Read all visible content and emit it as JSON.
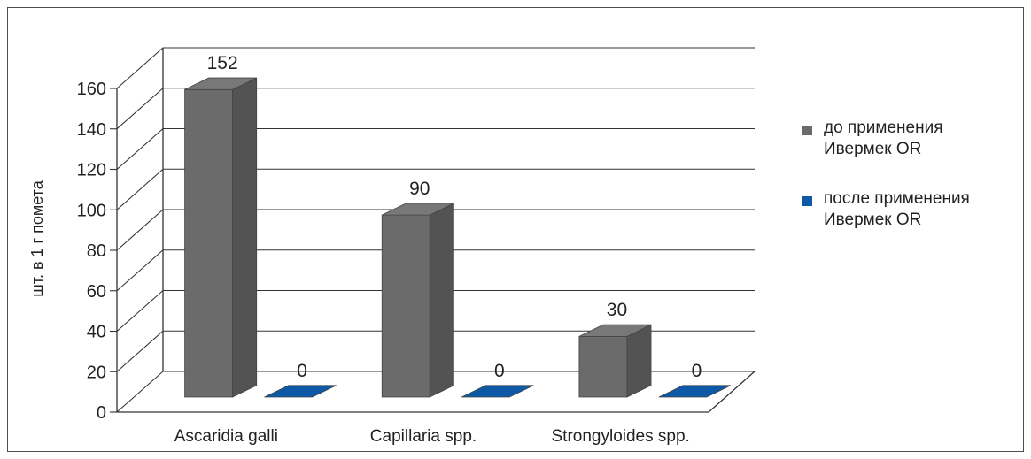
{
  "chart_data": {
    "type": "bar",
    "title": "",
    "xlabel": "",
    "ylabel": "шт. в 1 г помета",
    "ylim": [
      0,
      160
    ],
    "yticks": [
      0,
      20,
      40,
      60,
      80,
      100,
      120,
      140,
      160
    ],
    "categories": [
      "Ascaridia galli",
      "Capillaria spp.",
      "Strongyloides spp."
    ],
    "series": [
      {
        "name": "до применения Ивермек OR",
        "values": [
          152,
          90,
          30
        ],
        "color": "#6b6b6b"
      },
      {
        "name": "после применения Ивермек OR",
        "values": [
          0,
          0,
          0
        ],
        "color": "#0e59a6"
      }
    ],
    "grid": true,
    "legend_position": "right",
    "style": "3d-column"
  },
  "legend": {
    "items": [
      {
        "line1": "до применения",
        "line2": "Ивермек OR",
        "color": "#6b6b6b"
      },
      {
        "line1": "после применения",
        "line2": "Ивермек OR",
        "color": "#0e59a6"
      }
    ]
  }
}
